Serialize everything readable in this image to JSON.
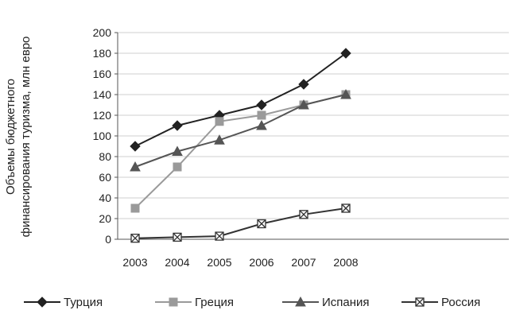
{
  "chart_data": {
    "type": "line",
    "ylabel_lines": [
      "Объемы бюджетного",
      "финансирования туризма, млн евро"
    ],
    "xlabel": "",
    "x": [
      "2003",
      "2004",
      "2005",
      "2006",
      "2007",
      "2008"
    ],
    "ylim": [
      0,
      200
    ],
    "yticks": [
      "0",
      "20",
      "40",
      "60",
      "80",
      "100",
      "120",
      "140",
      "160",
      "180",
      "200"
    ],
    "grid": "horizontal",
    "legend_position": "bottom",
    "series": [
      {
        "name": "Турция",
        "values": [
          90,
          110,
          120,
          130,
          150,
          180
        ],
        "color": "#222222",
        "marker": "diamond"
      },
      {
        "name": "Греция",
        "values": [
          30,
          70,
          114,
          120,
          130,
          140
        ],
        "color": "#9a9a9a",
        "marker": "square"
      },
      {
        "name": "Испания",
        "values": [
          70,
          85,
          96,
          110,
          130,
          140
        ],
        "color": "#555555",
        "marker": "triangle"
      },
      {
        "name": "Россия",
        "values": [
          1,
          2,
          3,
          15,
          24,
          30
        ],
        "color": "#333333",
        "marker": "xbox"
      }
    ]
  }
}
